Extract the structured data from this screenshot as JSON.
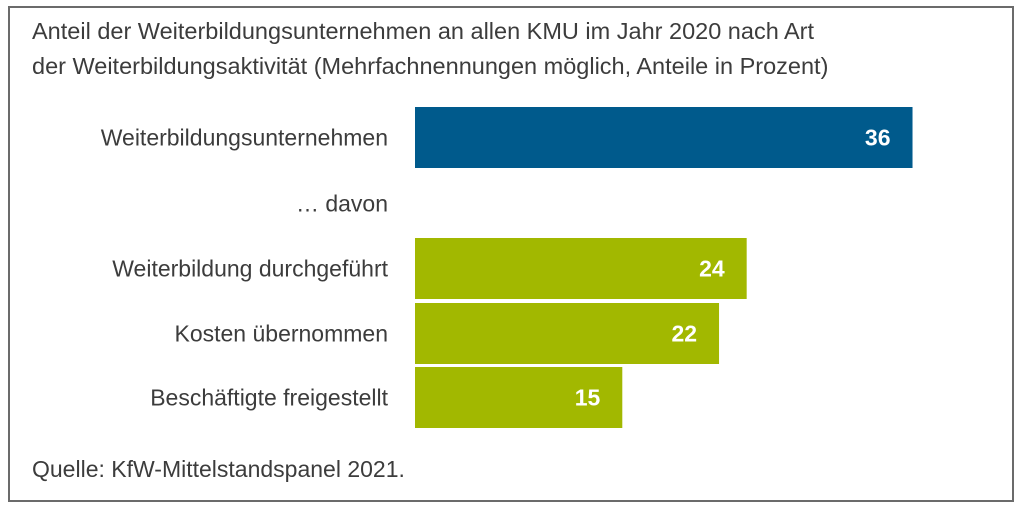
{
  "chart_data": {
    "type": "bar",
    "orientation": "horizontal",
    "title_lines": [
      "Anteil der Weiterbildungsunternehmen an allen KMU im Jahr 2020 nach Art",
      "der Weiterbildungsaktivität (Mehrfachnennungen möglich, Anteile in Prozent)"
    ],
    "categories": [
      "Weiterbildungsunternehmen",
      "… davon",
      "Weiterbildung durchgeführt",
      "Kosten übernommen",
      "Beschäftigte freigestellt"
    ],
    "values": [
      36,
      null,
      24,
      22,
      15
    ],
    "value_labels": [
      "36",
      "",
      "24",
      "22",
      "15"
    ],
    "bar_colors": [
      "#005A8C",
      null,
      "#A2B800",
      "#A2B800",
      "#A2B800"
    ],
    "xlim": [
      0,
      40
    ],
    "grid": false,
    "legend": "none",
    "source": "Quelle: KfW-Mittelstandspanel 2021."
  }
}
